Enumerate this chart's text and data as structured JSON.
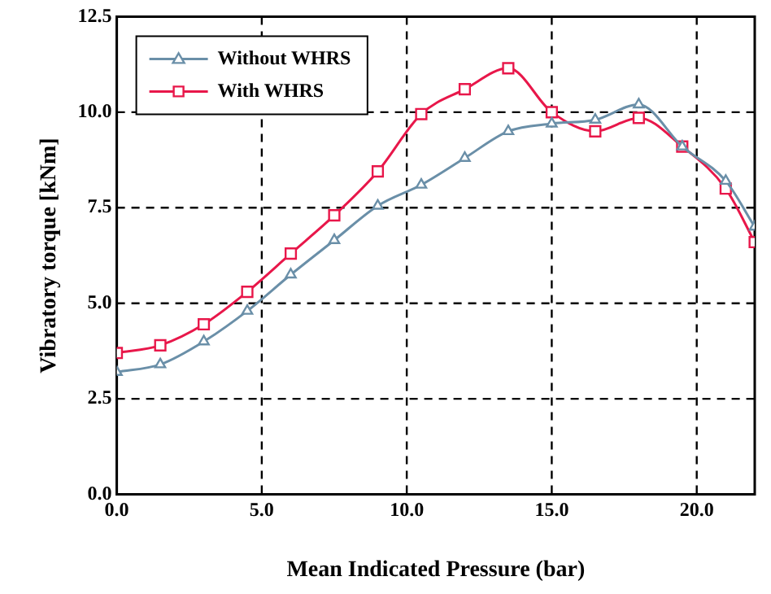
{
  "chart_data": {
    "type": "line",
    "xlabel": "Mean Indicated Pressure (bar)",
    "ylabel": "Vibratory torque [kNm]",
    "xlim": [
      0,
      22
    ],
    "ylim": [
      0,
      12.5
    ],
    "xticks": [
      {
        "value": 0,
        "label": "0.0"
      },
      {
        "value": 5,
        "label": "5.0"
      },
      {
        "value": 10,
        "label": "10.0"
      },
      {
        "value": 15,
        "label": "15.0"
      },
      {
        "value": 20,
        "label": "20.0"
      }
    ],
    "yticks": [
      {
        "value": 0,
        "label": "0.0"
      },
      {
        "value": 2.5,
        "label": "2.5"
      },
      {
        "value": 5,
        "label": "5.0"
      },
      {
        "value": 7.5,
        "label": "7.5"
      },
      {
        "value": 10,
        "label": "10.0"
      },
      {
        "value": 12.5,
        "label": "12.5"
      }
    ],
    "grid": true,
    "legend": "top left",
    "line_style": "solid",
    "x": [
      0,
      1.5,
      3,
      4.5,
      6,
      7.5,
      9,
      10.5,
      12,
      13.5,
      15,
      16.5,
      18,
      19.5,
      21,
      22
    ],
    "series": [
      {
        "name": "Without WHRS",
        "color": "#6a8fa8",
        "marker": "triangle",
        "values": [
          3.2,
          3.4,
          4.0,
          4.8,
          5.75,
          6.65,
          7.55,
          8.1,
          8.8,
          9.5,
          9.7,
          9.8,
          10.2,
          9.1,
          8.2,
          7.0
        ]
      },
      {
        "name": "With WHRS",
        "color": "#e8174a",
        "marker": "square",
        "values": [
          3.7,
          3.9,
          4.45,
          5.3,
          6.3,
          7.3,
          8.45,
          9.95,
          10.6,
          11.15,
          10.0,
          9.5,
          9.85,
          9.1,
          8.0,
          6.6
        ]
      }
    ]
  }
}
